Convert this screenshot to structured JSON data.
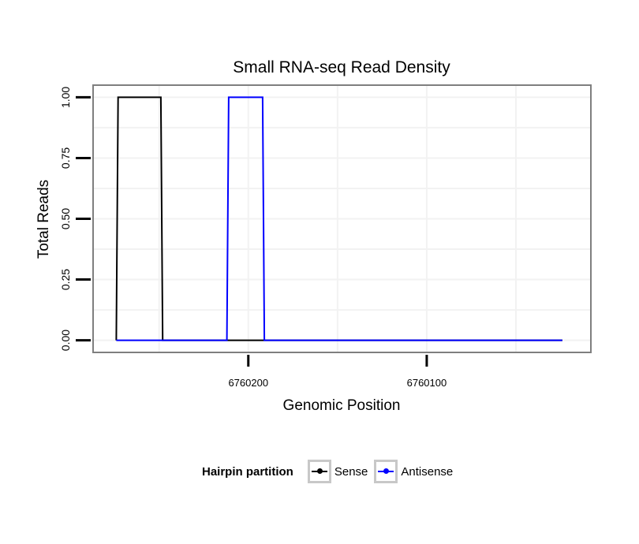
{
  "chart_data": {
    "type": "line",
    "title": "Small RNA-seq Read Density",
    "xlabel": "Genomic Position",
    "ylabel": "Total Reads",
    "x_reversed": true,
    "xlim": [
      6760287,
      6760008
    ],
    "ylim": [
      -0.05,
      1.05
    ],
    "x_ticks": [
      6760200,
      6760100
    ],
    "x_tick_labels": [
      "6760200",
      "6760100"
    ],
    "y_ticks": [
      0,
      0.25,
      0.5,
      0.75,
      1.0
    ],
    "y_tick_labels": [
      "0.00",
      "0.25",
      "0.50",
      "0.75",
      "1.00"
    ],
    "grid": true,
    "series": [
      {
        "name": "Sense",
        "color": "#000000",
        "x": [
          6760274,
          6760273,
          6760249,
          6760248,
          6760024
        ],
        "y": [
          0,
          1,
          1,
          0,
          0
        ]
      },
      {
        "name": "Antisense",
        "color": "#0000ff",
        "x": [
          6760274,
          6760212,
          6760211,
          6760192,
          6760191,
          6760024
        ],
        "y": [
          0,
          0,
          1,
          1,
          0,
          0
        ]
      }
    ],
    "legend": {
      "title": "Hairpin partition",
      "position": "bottom",
      "items": [
        "Sense",
        "Antisense"
      ]
    }
  }
}
